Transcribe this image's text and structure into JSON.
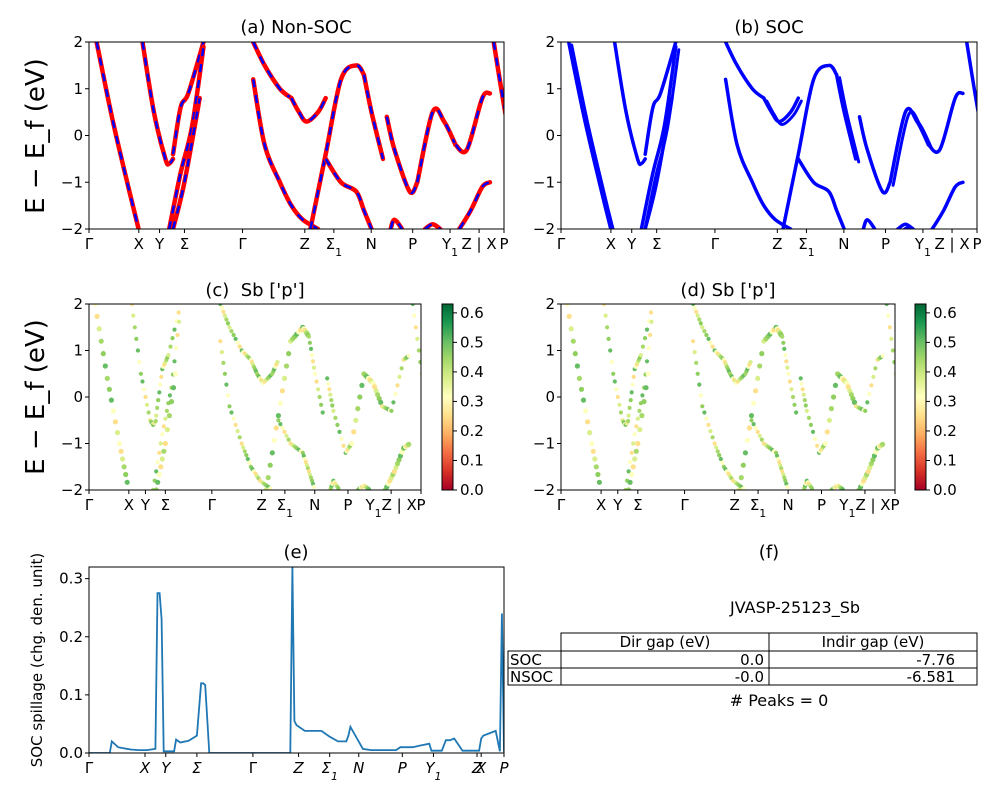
{
  "chart_data": [
    {
      "type": "line",
      "title": "(a) Non-SOC",
      "ylabel": "E − E_f (eV)",
      "ylim": [
        -2,
        2
      ],
      "yticks": [
        -2,
        -1,
        0,
        1,
        2
      ],
      "xticks": [
        "Γ",
        "X",
        "Y",
        "Σ",
        "Γ",
        "Z",
        "Σ1",
        "N",
        "P",
        "Y1",
        "Z | X",
        "P"
      ],
      "xtick_positions": [
        0,
        0.12,
        0.17,
        0.23,
        0.37,
        0.52,
        0.59,
        0.68,
        0.78,
        0.87,
        0.94,
        1.0
      ],
      "series": [
        {
          "color": "#ff0000",
          "style": "solid",
          "bands": [
            {
              "x": [
                0.02,
                0.06,
                0.1,
                0.13
              ],
              "y": [
                2.0,
                0.4,
                -1.0,
                -2.0
              ]
            },
            {
              "x": [
                0.14,
                0.17,
                0.2,
                0.21,
                0.22
              ],
              "y": [
                2.0,
                0.5,
                -0.5,
                -0.6,
                -0.5
              ]
            },
            {
              "x": [
                0.22,
                0.24,
                0.26,
                0.3
              ],
              "y": [
                -0.4,
                0.6,
                0.9,
                2.0
              ]
            },
            {
              "x": [
                0.21,
                0.24,
                0.27,
                0.3
              ],
              "y": [
                -2.0,
                -0.8,
                0.2,
                1.9
              ]
            },
            {
              "x": [
                0.22,
                0.25,
                0.29
              ],
              "y": [
                -2.0,
                -1.0,
                0.8
              ]
            },
            {
              "x": [
                0.43,
                0.46,
                0.5,
                0.53
              ],
              "y": [
                2.0,
                1.5,
                1.0,
                0.8
              ]
            },
            {
              "x": [
                0.53,
                0.55,
                0.57,
                0.6,
                0.62
              ],
              "y": [
                0.8,
                0.5,
                0.3,
                0.5,
                0.8
              ]
            },
            {
              "x": [
                0.43,
                0.46,
                0.5,
                0.53,
                0.56,
                0.6
              ],
              "y": [
                1.2,
                -0.2,
                -1.0,
                -1.5,
                -1.8,
                -2.0
              ]
            },
            {
              "x": [
                0.58,
                0.62,
                0.66,
                0.7,
                0.72
              ],
              "y": [
                -2.0,
                -0.4,
                1.2,
                1.5,
                1.3
              ]
            },
            {
              "x": [
                0.72,
                0.74,
                0.77
              ],
              "y": [
                1.3,
                0.5,
                -0.5
              ]
            },
            {
              "x": [
                0.62,
                0.66,
                0.7,
                0.72,
                0.74
              ],
              "y": [
                -0.5,
                -1.0,
                -1.2,
                -1.6,
                -2.0
              ]
            },
            {
              "x": [
                0.78,
                0.8,
                0.84,
                0.86
              ],
              "y": [
                0.4,
                -0.3,
                -1.2,
                -1.0
              ]
            },
            {
              "x": [
                0.86,
                0.9,
                0.93,
                0.96
              ],
              "y": [
                -1.0,
                0.5,
                0.3,
                -0.2
              ]
            },
            {
              "x": [
                0.96,
                0.99,
                1.03,
                1.05
              ],
              "y": [
                -0.2,
                -0.3,
                0.8,
                0.9
              ]
            },
            {
              "x": [
                0.79,
                0.8,
                0.82
              ],
              "y": [
                -2.0,
                -1.8,
                -2.0
              ]
            },
            {
              "x": [
                0.88,
                0.9,
                0.92
              ],
              "y": [
                -2.0,
                -1.9,
                -2.0
              ]
            },
            {
              "x": [
                0.97,
                1.0,
                1.03,
                1.05
              ],
              "y": [
                -2.0,
                -1.6,
                -1.1,
                -1.0
              ]
            },
            {
              "x": [
                1.06,
                1.09,
                1.12,
                1.14
              ],
              "y": [
                2.0,
                0.5,
                -0.8,
                -1.8
              ]
            }
          ]
        },
        {
          "color": "#0000ff",
          "style": "dashed",
          "bands": "same as red"
        }
      ]
    },
    {
      "type": "line",
      "title": "(b) SOC",
      "ylim": [
        -2,
        2
      ],
      "yticks": [
        -2,
        -1,
        0,
        1,
        2
      ],
      "xticks": [
        "Γ",
        "X",
        "Y",
        "Σ",
        "Γ",
        "Z",
        "Σ1",
        "N",
        "P",
        "Y1",
        "Z | X",
        "P"
      ],
      "series": [
        {
          "color": "#0000ff",
          "bands": "same shape as (a)"
        }
      ]
    },
    {
      "type": "scatter",
      "title": "(c)  Sb ['p']",
      "ylabel": "E − E_f (eV)",
      "ylim": [
        -2,
        2
      ],
      "yticks": [
        -2,
        -1,
        0,
        1,
        2
      ],
      "xticks": [
        "Γ",
        "X",
        "Y",
        "Σ",
        "Γ",
        "Z",
        "Σ1",
        "N",
        "P",
        "Y1Z | X",
        "P"
      ],
      "colorbar": {
        "colormap": "RdYlGn",
        "range": [
          0.0,
          0.63
        ],
        "ticks": [
          "0.0",
          "0.1",
          "0.2",
          "0.3",
          "0.4",
          "0.5",
          "0.6"
        ]
      }
    },
    {
      "type": "scatter",
      "title": "(d) Sb ['p']",
      "ylim": [
        -2,
        2
      ],
      "yticks": [
        -2,
        -1,
        0,
        1,
        2
      ],
      "xticks": [
        "Γ",
        "X",
        "Y",
        "Σ",
        "Γ",
        "Z",
        "Σ1",
        "N",
        "P",
        "Y1Z | X",
        "P"
      ],
      "colorbar": {
        "colormap": "RdYlGn",
        "range": [
          0.0,
          0.63
        ],
        "ticks": [
          "0.0",
          "0.1",
          "0.2",
          "0.3",
          "0.4",
          "0.5",
          "0.6"
        ]
      }
    },
    {
      "type": "line",
      "title": "(e)",
      "ylabel": "SOC spillage (chg. den. unit)",
      "ylim": [
        0.0,
        0.32
      ],
      "yticks": [
        "0.0",
        "0.1",
        "0.2",
        "0.3"
      ],
      "xticks": [
        "Γ",
        "X",
        "Y",
        "Σ",
        "Γ",
        "Z",
        "Σ1",
        "N",
        "P",
        "Y1",
        "Z",
        "X",
        "P"
      ],
      "series": [
        {
          "color": "#1f77b4",
          "x": [
            0,
            0.05,
            0.055,
            0.07,
            0.1,
            0.12,
            0.14,
            0.16,
            0.165,
            0.17,
            0.175,
            0.18,
            0.2,
            0.205,
            0.21,
            0.22,
            0.24,
            0.26,
            0.27,
            0.275,
            0.28,
            0.29,
            0.31,
            0.33,
            0.36,
            0.4,
            0.44,
            0.485,
            0.49,
            0.495,
            0.5,
            0.52,
            0.56,
            0.58,
            0.6,
            0.62,
            0.625,
            0.63,
            0.66,
            0.68,
            0.7,
            0.72,
            0.74,
            0.75,
            0.76,
            0.78,
            0.8,
            0.82,
            0.825,
            0.84,
            0.85,
            0.86,
            0.87,
            0.88,
            0.9,
            0.92,
            0.94,
            0.945,
            0.95,
            0.98,
            0.99,
            0.995,
            1.0
          ],
          "y": [
            0.0,
            0.0,
            0.02,
            0.01,
            0.006,
            0.005,
            0.005,
            0.007,
            0.275,
            0.275,
            0.23,
            0.003,
            0.003,
            0.003,
            0.023,
            0.018,
            0.021,
            0.03,
            0.12,
            0.12,
            0.117,
            0.0,
            0.0,
            0.0,
            0.0,
            0.0,
            0.0,
            0.0,
            0.32,
            0.055,
            0.048,
            0.038,
            0.038,
            0.028,
            0.02,
            0.02,
            0.03,
            0.045,
            0.007,
            0.005,
            0.005,
            0.005,
            0.005,
            0.01,
            0.01,
            0.01,
            0.013,
            0.016,
            0.004,
            0.004,
            0.004,
            0.022,
            0.022,
            0.025,
            0.004,
            0.004,
            0.004,
            0.025,
            0.03,
            0.038,
            0.003,
            0.24,
            0.002
          ]
        }
      ]
    },
    {
      "type": "table",
      "title": "(f)",
      "subtitle": "JVASP-25123_Sb",
      "columns": [
        "Dir gap (eV)",
        "Indir gap (eV)"
      ],
      "rows": [
        {
          "label": "SOC",
          "values": [
            "0.0",
            "-7.76"
          ]
        },
        {
          "label": "NSOC",
          "values": [
            "-0.0",
            "-6.581"
          ]
        }
      ],
      "footer": "# Peaks = 0"
    }
  ]
}
